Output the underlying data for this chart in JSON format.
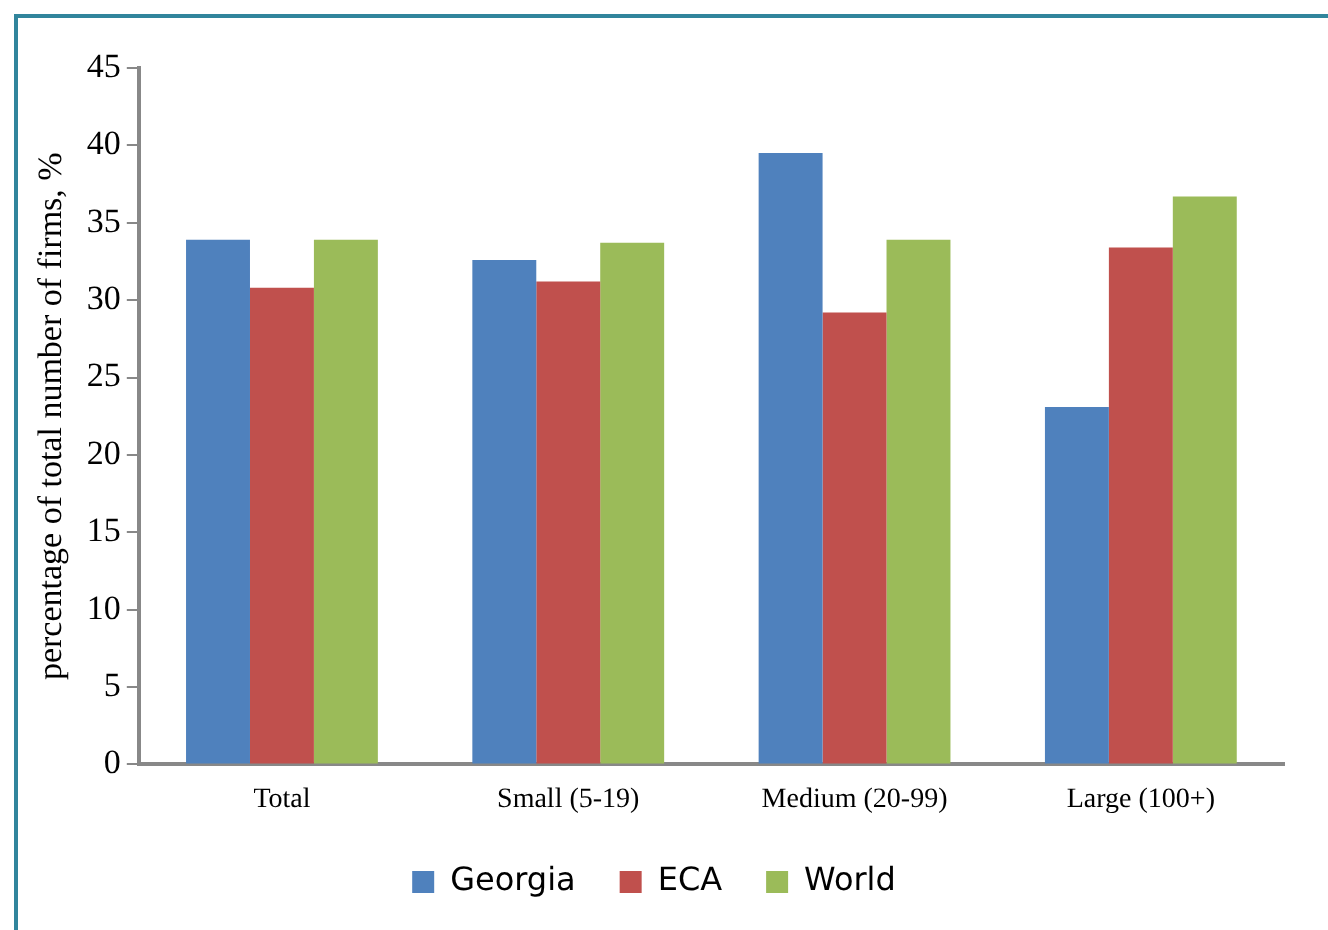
{
  "chart_data": {
    "type": "bar",
    "ylabel": "percentage of total number of firms, %",
    "categories": [
      "Total",
      "Small (5-19)",
      "Medium (20-99)",
      "Large (100+)"
    ],
    "series": [
      {
        "name": "Georgia",
        "color": "#4f81bd",
        "values": [
          33.9,
          32.6,
          39.5,
          23.1
        ]
      },
      {
        "name": "ECA",
        "color": "#c0504d",
        "values": [
          30.8,
          31.2,
          29.2,
          33.4
        ]
      },
      {
        "name": "World",
        "color": "#9bbb59",
        "values": [
          33.9,
          33.7,
          33.9,
          36.7
        ]
      }
    ],
    "ylim": [
      0,
      45
    ],
    "yticks": [
      0,
      5,
      10,
      15,
      20,
      25,
      30,
      35,
      40,
      45
    ],
    "grid": false,
    "legend": "bottom"
  }
}
